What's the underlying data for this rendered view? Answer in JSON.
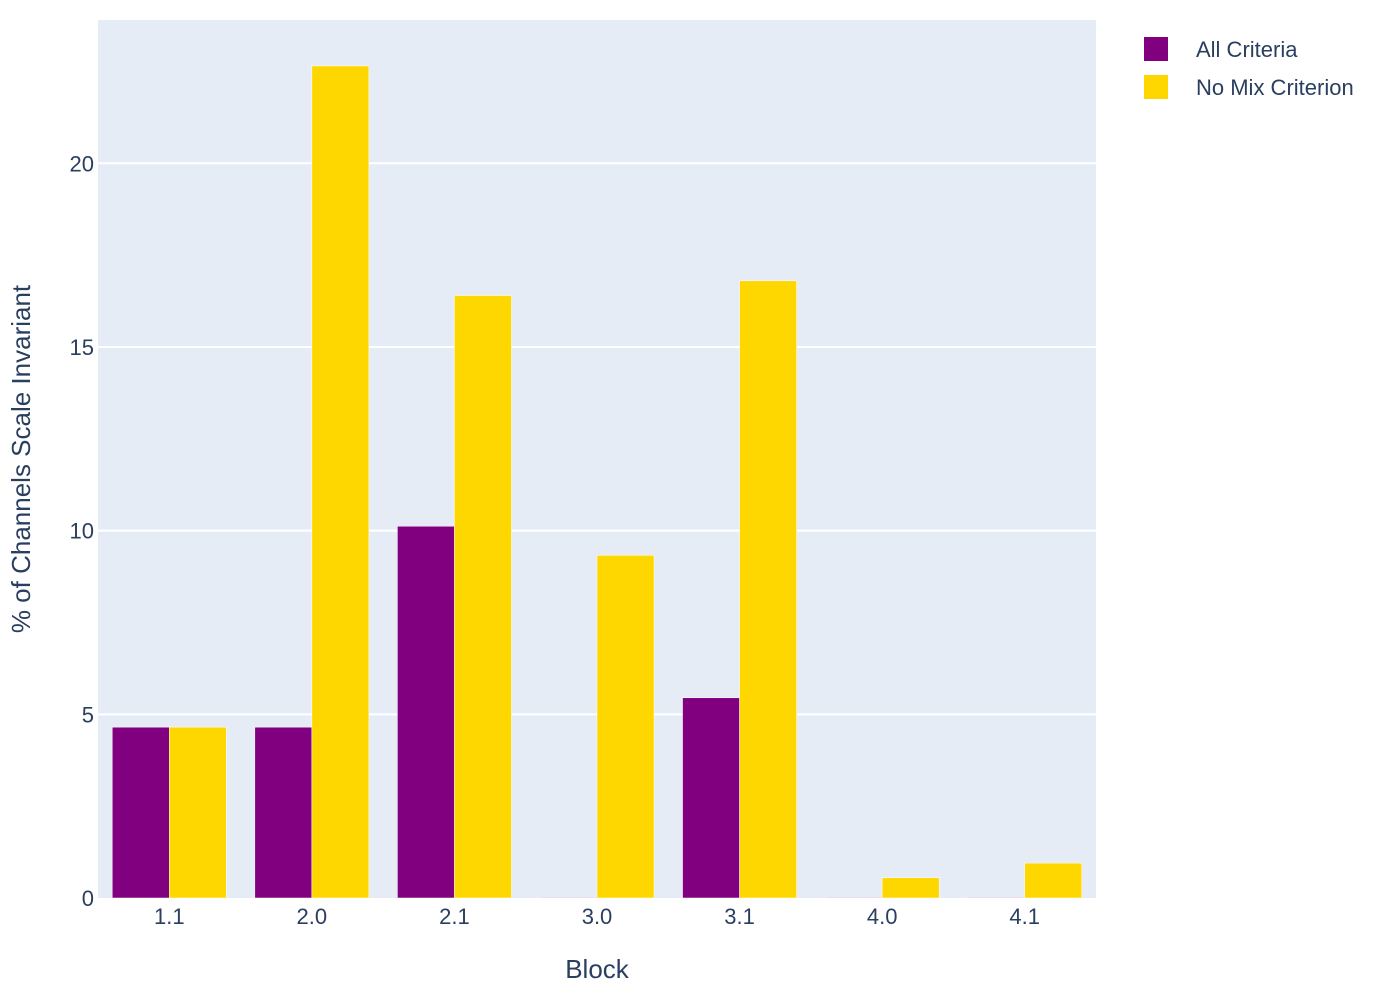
{
  "chart_data": {
    "type": "bar",
    "title": "",
    "xlabel": "Block",
    "ylabel": "% of Channels Scale Invariant",
    "categories": [
      "1.1",
      "2.0",
      "2.1",
      "3.0",
      "3.1",
      "4.0",
      "4.1"
    ],
    "series": [
      {
        "name": "All Criteria",
        "color": "#800080",
        "values": [
          4.65,
          4.65,
          10.12,
          0,
          5.45,
          0,
          0
        ]
      },
      {
        "name": "No Mix Criterion",
        "color": "#ffd700",
        "values": [
          4.65,
          22.65,
          16.4,
          9.33,
          16.8,
          0.55,
          0.95
        ]
      }
    ],
    "ylim": [
      0,
      23.9
    ],
    "yticks": [
      0,
      5,
      10,
      15,
      20
    ],
    "grid": true,
    "legend_position": "top-right",
    "plot_background": "#e5ecf6",
    "text_color": "#2a3f5f"
  }
}
